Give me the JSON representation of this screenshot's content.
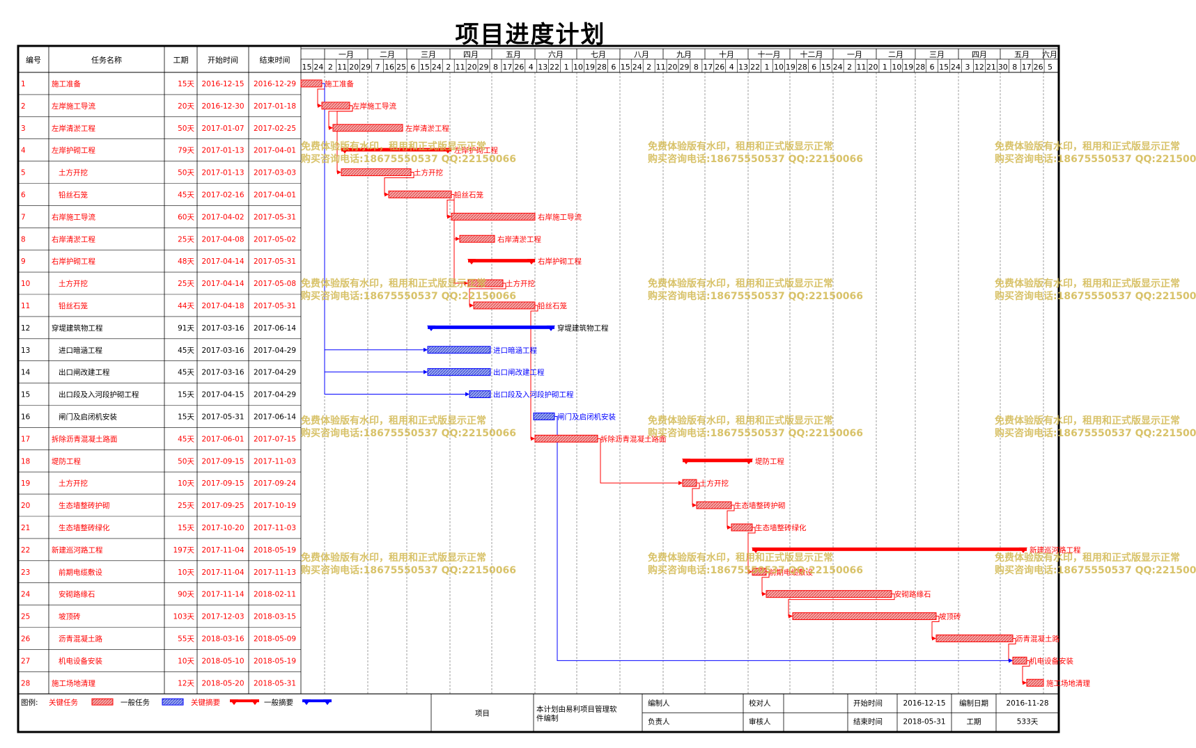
{
  "title": "项目进度计划",
  "headers": {
    "id": "编号",
    "name": "任务名称",
    "dur": "工期",
    "start": "开始时间",
    "end": "结束时间"
  },
  "colors": {
    "critical": "#ff0000",
    "normal": "#0000ff",
    "critical_fill": "#f4a8a8",
    "normal_fill": "#9aa8ee",
    "watermark": "#d2b84f"
  },
  "months": [
    "一月",
    "二月",
    "三月",
    "四月",
    "五月",
    "六月",
    "七月",
    "八月",
    "九月",
    "十月",
    "十一月",
    "十二月",
    "一月",
    "二月",
    "三月",
    "四月",
    "五月",
    "六月"
  ],
  "day_ticks": [
    "15",
    "24",
    "2",
    "11",
    "20",
    "29",
    "7",
    "16",
    "25",
    "6",
    "15",
    "24",
    "2",
    "11",
    "20",
    "29",
    "8",
    "17",
    "26",
    "4",
    "13",
    "22",
    "1",
    "10",
    "19",
    "28",
    "6",
    "15",
    "24",
    "2",
    "11",
    "20",
    "29",
    "8",
    "17",
    "26",
    "4",
    "13",
    "22",
    "1",
    "10",
    "19",
    "28",
    "6",
    "15",
    "24",
    "2",
    "11",
    "20",
    "1",
    "10",
    "19",
    "28",
    "6",
    "15",
    "24",
    "3",
    "12",
    "21",
    "30",
    "8",
    "17",
    "26",
    "5"
  ],
  "chart_data": {
    "type": "gantt",
    "timeline_start": "2016-12-15",
    "timeline_end": "2018-06-10",
    "tasks": [
      {
        "id": "1",
        "name": "施工准备",
        "dur": "15天",
        "start": "2016-12-15",
        "end": "2016-12-29",
        "indent": 0,
        "type": "critical"
      },
      {
        "id": "2",
        "name": "左岸施工导流",
        "dur": "20天",
        "start": "2016-12-30",
        "end": "2017-01-18",
        "indent": 0,
        "type": "critical"
      },
      {
        "id": "3",
        "name": "左岸清淤工程",
        "dur": "50天",
        "start": "2017-01-07",
        "end": "2017-02-25",
        "indent": 0,
        "type": "critical"
      },
      {
        "id": "4",
        "name": "左岸护砌工程",
        "dur": "79天",
        "start": "2017-01-13",
        "end": "2017-04-01",
        "indent": 0,
        "type": "critical_summary"
      },
      {
        "id": "5",
        "name": "土方开挖",
        "dur": "50天",
        "start": "2017-01-13",
        "end": "2017-03-03",
        "indent": 1,
        "type": "critical"
      },
      {
        "id": "6",
        "name": "铅丝石笼",
        "dur": "45天",
        "start": "2017-02-16",
        "end": "2017-04-01",
        "indent": 1,
        "type": "critical"
      },
      {
        "id": "7",
        "name": "右岸施工导流",
        "dur": "60天",
        "start": "2017-04-02",
        "end": "2017-05-31",
        "indent": 0,
        "type": "critical"
      },
      {
        "id": "8",
        "name": "右岸清淤工程",
        "dur": "25天",
        "start": "2017-04-08",
        "end": "2017-05-02",
        "indent": 0,
        "type": "critical"
      },
      {
        "id": "9",
        "name": "右岸护砌工程",
        "dur": "48天",
        "start": "2017-04-14",
        "end": "2017-05-31",
        "indent": 0,
        "type": "critical_summary"
      },
      {
        "id": "10",
        "name": "土方开挖",
        "dur": "25天",
        "start": "2017-04-14",
        "end": "2017-05-08",
        "indent": 1,
        "type": "critical"
      },
      {
        "id": "11",
        "name": "铅丝石笼",
        "dur": "44天",
        "start": "2017-04-18",
        "end": "2017-05-31",
        "indent": 1,
        "type": "critical"
      },
      {
        "id": "12",
        "name": "穿堤建筑物工程",
        "dur": "91天",
        "start": "2017-03-16",
        "end": "2017-06-14",
        "indent": 0,
        "type": "normal_summary"
      },
      {
        "id": "13",
        "name": "进口暗涵工程",
        "dur": "45天",
        "start": "2017-03-16",
        "end": "2017-04-29",
        "indent": 1,
        "type": "normal"
      },
      {
        "id": "14",
        "name": "出口闸改建工程",
        "dur": "45天",
        "start": "2017-03-16",
        "end": "2017-04-29",
        "indent": 1,
        "type": "normal"
      },
      {
        "id": "15",
        "name": "出口段及入河段护砌工程",
        "dur": "15天",
        "start": "2017-04-15",
        "end": "2017-04-29",
        "indent": 1,
        "type": "normal"
      },
      {
        "id": "16",
        "name": "闸门及启闭机安装",
        "dur": "15天",
        "start": "2017-05-31",
        "end": "2017-06-14",
        "indent": 1,
        "type": "normal"
      },
      {
        "id": "17",
        "name": "拆除沥青混凝土路面",
        "dur": "45天",
        "start": "2017-06-01",
        "end": "2017-07-15",
        "indent": 0,
        "type": "critical"
      },
      {
        "id": "18",
        "name": "堤防工程",
        "dur": "50天",
        "start": "2017-09-15",
        "end": "2017-11-03",
        "indent": 0,
        "type": "critical_summary"
      },
      {
        "id": "19",
        "name": "土方开挖",
        "dur": "10天",
        "start": "2017-09-15",
        "end": "2017-09-24",
        "indent": 1,
        "type": "critical"
      },
      {
        "id": "20",
        "name": "生态墙整砖护砌",
        "dur": "25天",
        "start": "2017-09-25",
        "end": "2017-10-19",
        "indent": 1,
        "type": "critical"
      },
      {
        "id": "21",
        "name": "生态墙整砖绿化",
        "dur": "15天",
        "start": "2017-10-20",
        "end": "2017-11-03",
        "indent": 1,
        "type": "critical"
      },
      {
        "id": "22",
        "name": "新建巡河路工程",
        "dur": "197天",
        "start": "2017-11-04",
        "end": "2018-05-19",
        "indent": 0,
        "type": "critical_summary"
      },
      {
        "id": "23",
        "name": "前期电缆敷设",
        "dur": "10天",
        "start": "2017-11-04",
        "end": "2017-11-13",
        "indent": 1,
        "type": "critical"
      },
      {
        "id": "24",
        "name": "安砌路缘石",
        "dur": "90天",
        "start": "2017-11-14",
        "end": "2018-02-11",
        "indent": 1,
        "type": "critical"
      },
      {
        "id": "25",
        "name": "坡顶砖",
        "dur": "103天",
        "start": "2017-12-03",
        "end": "2018-03-15",
        "indent": 1,
        "type": "critical"
      },
      {
        "id": "26",
        "name": "沥青混凝土路",
        "dur": "55天",
        "start": "2018-03-16",
        "end": "2018-05-09",
        "indent": 1,
        "type": "critical"
      },
      {
        "id": "27",
        "name": "机电设备安装",
        "dur": "10天",
        "start": "2018-05-10",
        "end": "2018-05-19",
        "indent": 1,
        "type": "critical"
      },
      {
        "id": "28",
        "name": "施工场地清理",
        "dur": "12天",
        "start": "2018-05-20",
        "end": "2018-05-31",
        "indent": 0,
        "type": "critical"
      }
    ]
  },
  "watermark": {
    "line1": "免费体验版有水印，租用和正式版显示正常",
    "line2": "购买咨询电话:18675550537 QQ:22150066"
  },
  "legend": {
    "label": "图例:",
    "critical_task": "关键任务",
    "normal_task": "一般任务",
    "critical_summary": "关键摘要",
    "normal_summary": "一般摘要"
  },
  "footer": {
    "project_label": "项目",
    "compiled_by_software": "本计划由易利项目管理软件编制",
    "editor_label": "编制人",
    "owner_label": "负责人",
    "checker_label": "校对人",
    "reviewer_label": "审核人",
    "start_label": "开始时间",
    "start_value": "2016-12-15",
    "end_label": "结束时间",
    "end_value": "2018-05-31",
    "made_date_label": "编制日期",
    "made_date_value": "2016-11-28",
    "duration_label": "工期",
    "duration_value": "533天"
  }
}
